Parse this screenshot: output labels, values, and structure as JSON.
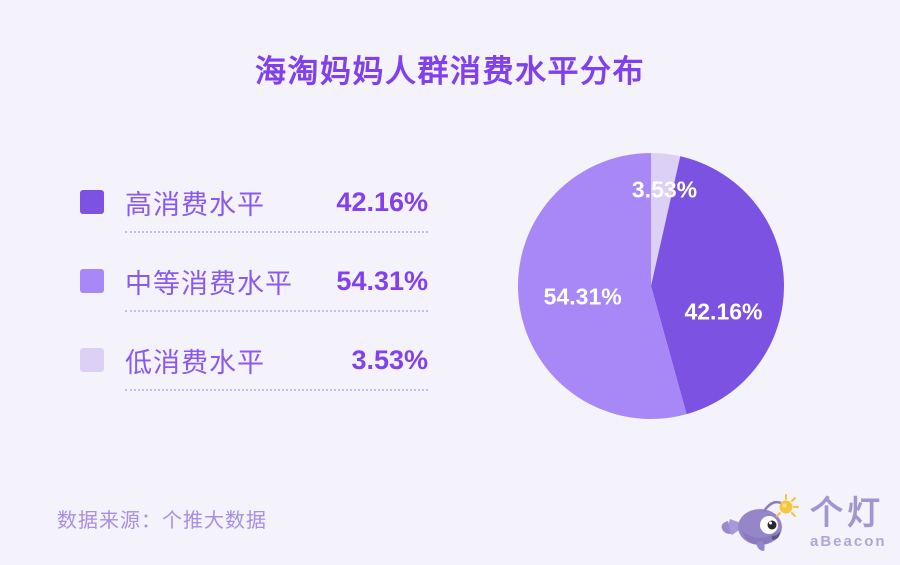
{
  "page": {
    "background": "#f4f2fb"
  },
  "header": {
    "title": "海淘妈妈人群消费水平分布",
    "title_color": "#8040ee"
  },
  "legend": {
    "items": [
      {
        "label": "高消费水平",
        "value_text": "42.16%",
        "color": "#7b52e2"
      },
      {
        "label": "中等消费水平",
        "value_text": "54.31%",
        "color": "#a888f6"
      },
      {
        "label": "低消费水平",
        "value_text": "3.53%",
        "color": "#dcd0f7"
      }
    ]
  },
  "chart_data": {
    "type": "pie",
    "title": "海淘妈妈人群消费水平分布",
    "unit": "percent",
    "start_angle_deg": 0,
    "direction": "clockwise",
    "radius_px": 133,
    "slices": [
      {
        "label": "低消费水平",
        "value": 3.53,
        "data_label": "3.53%",
        "color": "#dcd0f7",
        "label_color": "#ffffff",
        "label_angle_deg": 8,
        "label_radius_frac": 0.73
      },
      {
        "label": "高消费水平",
        "value": 42.16,
        "data_label": "42.16%",
        "color": "#7b52e2",
        "label_color": "#ffffff",
        "label_angle_deg": 110,
        "label_radius_frac": 0.58
      },
      {
        "label": "中等消费水平",
        "value": 54.31,
        "data_label": "54.31%",
        "color": "#a888f6",
        "label_color": "#ffffff",
        "label_angle_deg": 261,
        "label_radius_frac": 0.52
      }
    ],
    "legend_position": "left",
    "data_labels_on": true
  },
  "footer": {
    "source_text": "数据来源：个推大数据"
  },
  "logo": {
    "name": "个灯",
    "subtitle": "aBeacon"
  }
}
